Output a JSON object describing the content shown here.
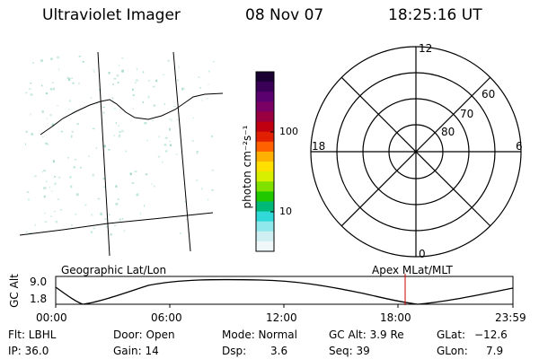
{
  "header": {
    "instrument": "Ultraviolet Imager",
    "date": "08 Nov 07",
    "time": "18:25:16 UT"
  },
  "colorbar": {
    "label": "photon cm⁻²s⁻¹",
    "ticks": [
      "100",
      "10"
    ],
    "colors": [
      "#1a0033",
      "#3a0058",
      "#5b006f",
      "#7a0066",
      "#9a0040",
      "#c00010",
      "#e02000",
      "#ff6000",
      "#ffb000",
      "#ffe000",
      "#d8f000",
      "#80e000",
      "#20c800",
      "#00b878",
      "#30d8d8",
      "#90e8ec",
      "#cfeff2",
      "#eff7f8"
    ]
  },
  "geo_map": {
    "title": "Geographic Lat/Lon"
  },
  "polar_plot": {
    "title": "Apex MLat/MLT",
    "mlt_labels": {
      "top": "12",
      "left": "18",
      "right": "6",
      "bottom": "0"
    },
    "lat_labels": [
      "60",
      "70",
      "80"
    ]
  },
  "altitude_strip": {
    "axis_label": "GC Alt",
    "y_labels": [
      "9.0",
      "1.8"
    ],
    "x_labels": [
      "00:00",
      "06:00",
      "12:00",
      "18:00",
      "23:59"
    ],
    "current_time_color": "#cc0000"
  },
  "status": {
    "filter": "Flt: LBHL",
    "ip": "IP: 36.0",
    "door": "Door: Open",
    "gain": "Gain: 14",
    "mode": "Mode: Normal",
    "dsp_label": "Dsp:",
    "dsp_value": "3.6",
    "gc_alt": "GC Alt: 3.9 Re",
    "seq": "Seq: 39",
    "glat_label": "GLat:",
    "glat_value": "−12.6",
    "glon_label": "GLon:",
    "glon_value": "7.9"
  }
}
